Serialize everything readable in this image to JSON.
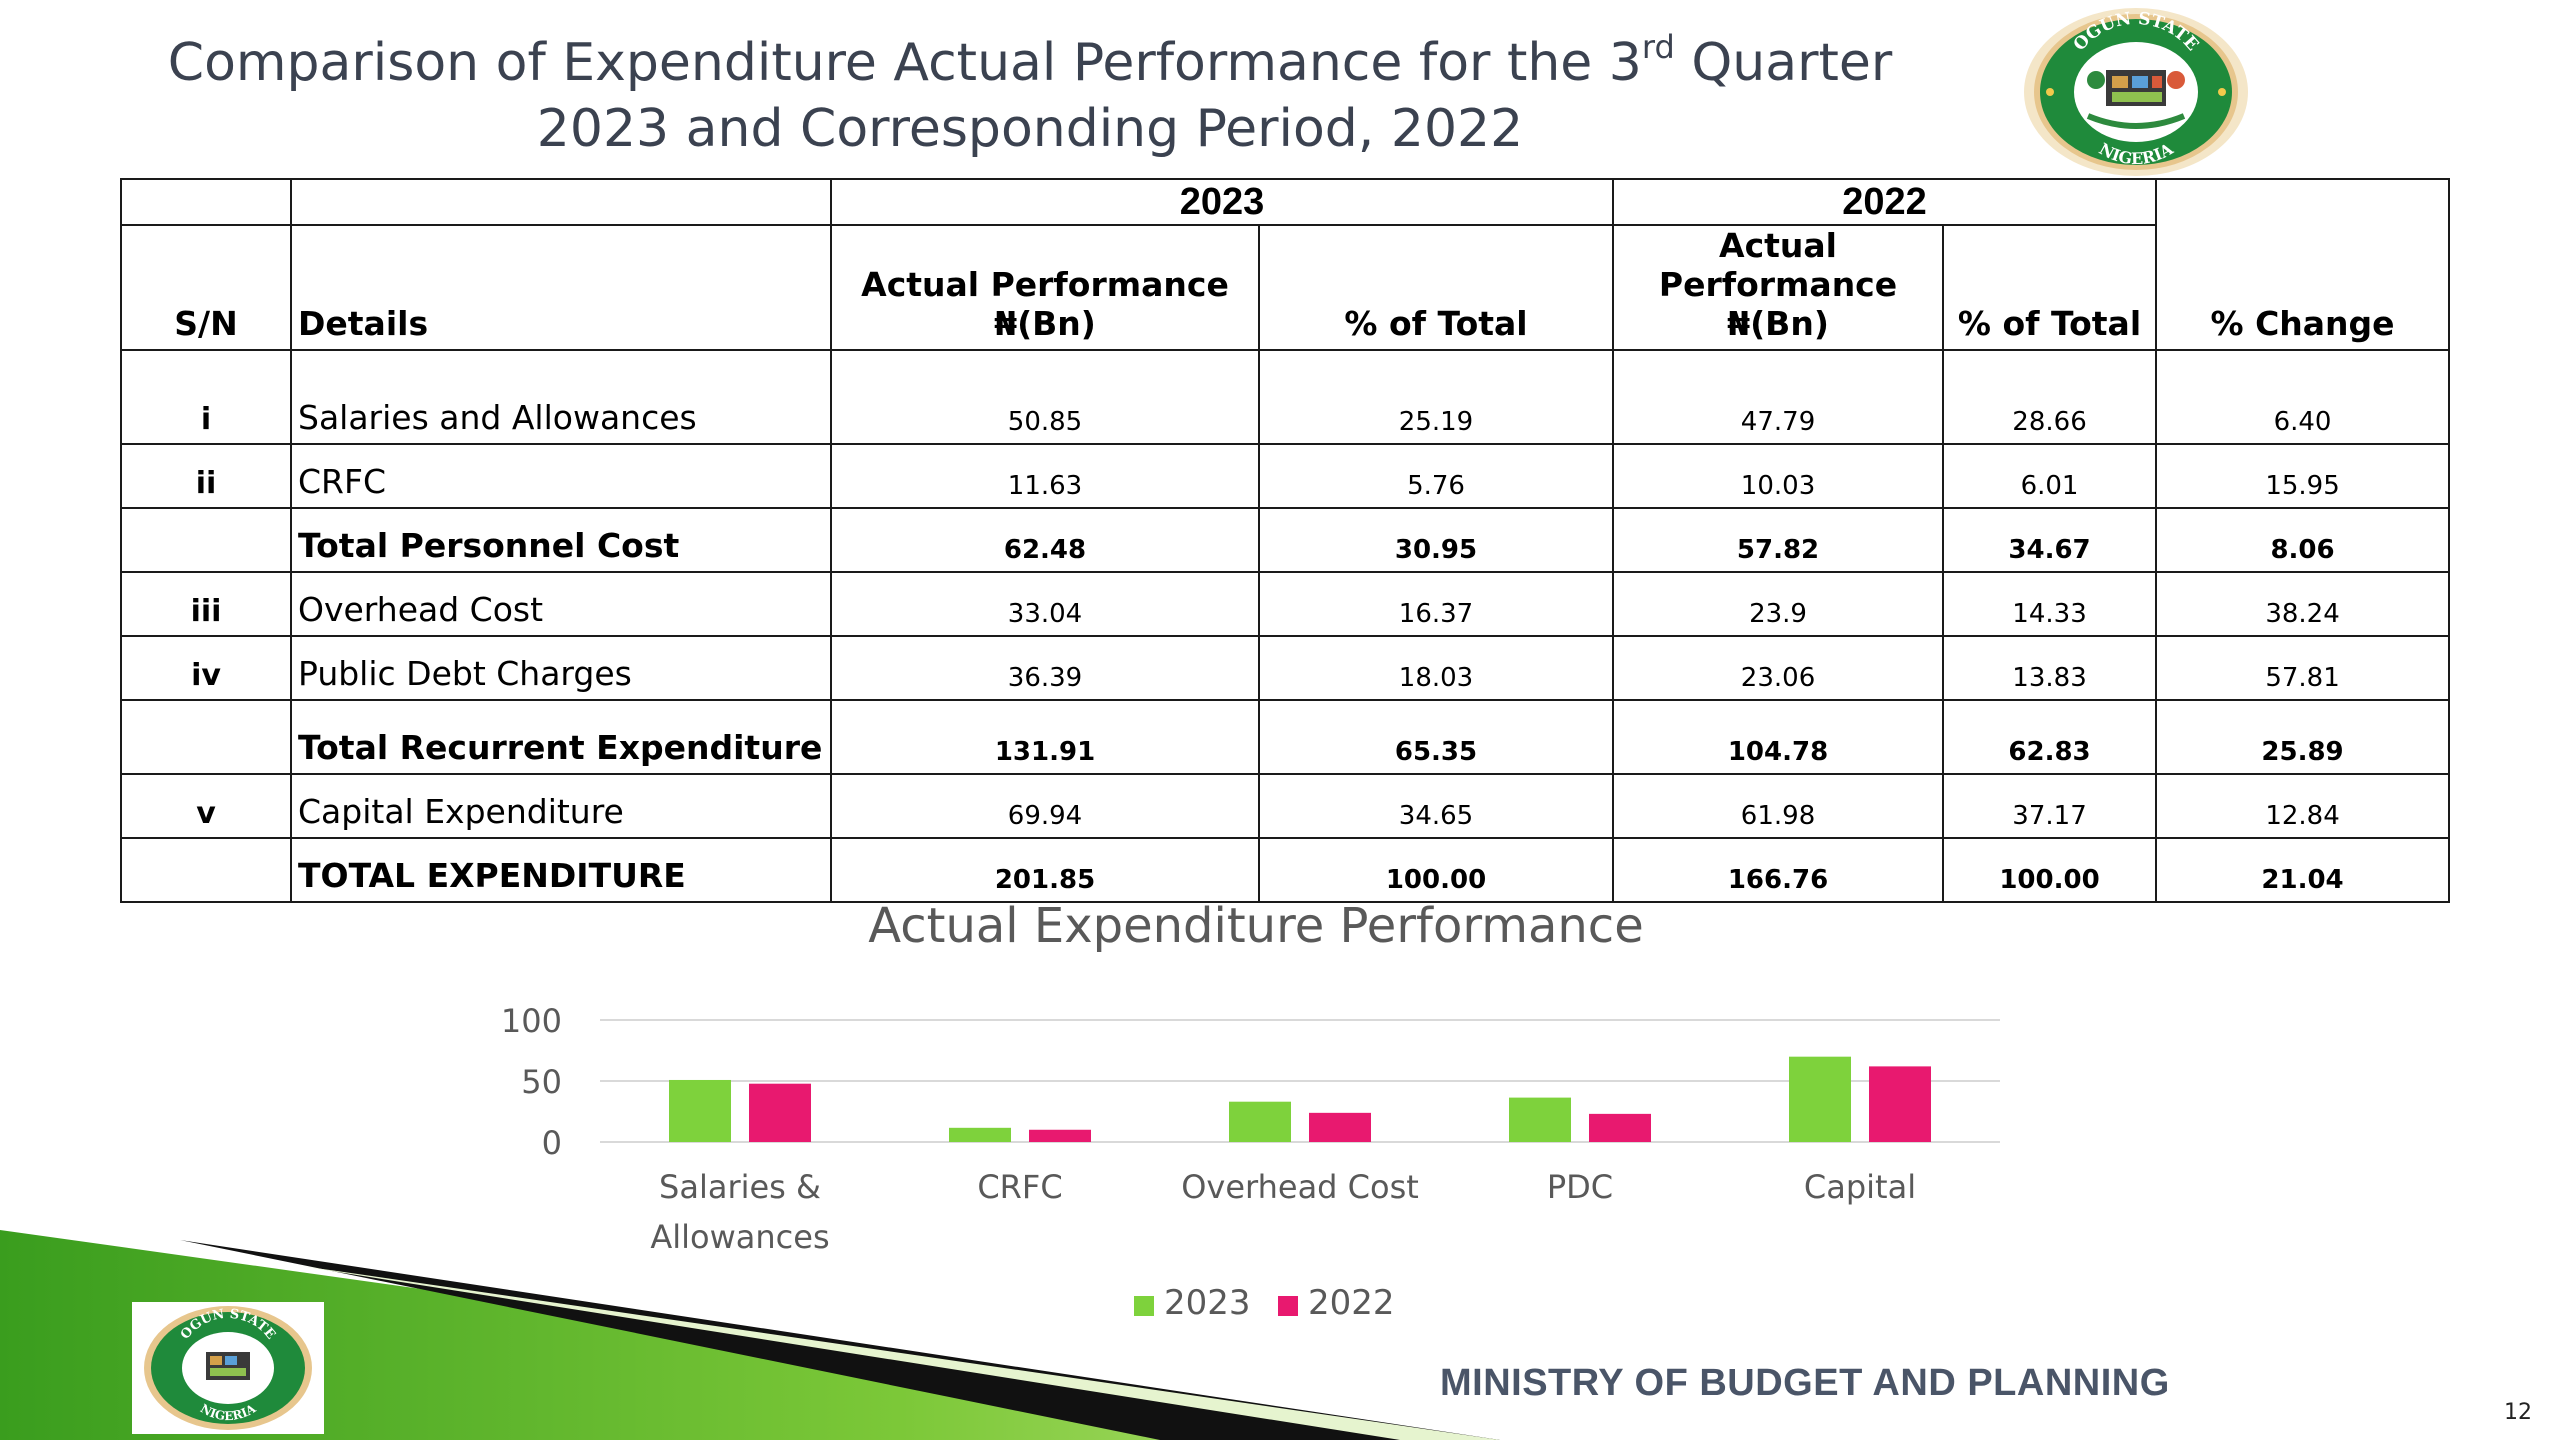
{
  "slide": {
    "title_line1_pre": "Comparison of Expenditure Actual Performance for the 3",
    "title_line1_sup": "rd",
    "title_line1_post": " Quarter",
    "title_line2": "2023 and Corresponding Period, 2022",
    "footer": "MINISTRY OF BUDGET AND PLANNING",
    "page_number": "12"
  },
  "emblem": {
    "top_text": "OGUN STATE",
    "bottom_text": "NIGERIA"
  },
  "table": {
    "year_2023": "2023",
    "year_2022": "2022",
    "headers": {
      "sn": "S/N",
      "details": "Details",
      "actual_line1": "Actual Performance",
      "actual_line2": "₦(Bn)",
      "pct_total": "% of Total",
      "pct_change": "% Change"
    },
    "rows": [
      {
        "sn": "i",
        "details": "Salaries and Allowances",
        "a2023": "50.85",
        "p2023": "25.19",
        "a2022": "47.79",
        "p2022": "28.66",
        "chg": "6.40",
        "bold": false
      },
      {
        "sn": "ii",
        "details": "CRFC",
        "a2023": "11.63",
        "p2023": "5.76",
        "a2022": "10.03",
        "p2022": "6.01",
        "chg": "15.95",
        "bold": false
      },
      {
        "sn": "",
        "details": "Total Personnel Cost",
        "a2023": "62.48",
        "p2023": "30.95",
        "a2022": "57.82",
        "p2022": "34.67",
        "chg": "8.06",
        "bold": true
      },
      {
        "sn": "iii",
        "details": "Overhead Cost",
        "a2023": "33.04",
        "p2023": "16.37",
        "a2022": "23.9",
        "p2022": "14.33",
        "chg": "38.24",
        "bold": false
      },
      {
        "sn": "iv",
        "details": "Public Debt Charges",
        "a2023": "36.39",
        "p2023": "18.03",
        "a2022": "23.06",
        "p2022": "13.83",
        "chg": "57.81",
        "bold": false
      },
      {
        "sn": "",
        "details": "Total Recurrent Expenditure",
        "a2023": "131.91",
        "p2023": "65.35",
        "a2022": "104.78",
        "p2022": "62.83",
        "chg": "25.89",
        "bold": true
      },
      {
        "sn": "v",
        "details": "Capital Expenditure",
        "a2023": "69.94",
        "p2023": "34.65",
        "a2022": "61.98",
        "p2022": "37.17",
        "chg": "12.84",
        "bold": false
      },
      {
        "sn": "",
        "details": "TOTAL EXPENDITURE",
        "a2023": "201.85",
        "p2023": "100.00",
        "a2022": "166.76",
        "p2022": "100.00",
        "chg": "21.04",
        "bold": true
      }
    ]
  },
  "chart_data": {
    "type": "bar",
    "title": "Actual Expenditure Performance",
    "categories": [
      [
        "Salaries &",
        "Allowances"
      ],
      [
        "CRFC"
      ],
      [
        "Overhead Cost"
      ],
      [
        "PDC"
      ],
      [
        "Capital"
      ]
    ],
    "series": [
      {
        "name": "2023",
        "values": [
          50.85,
          11.63,
          33.04,
          36.39,
          69.94
        ],
        "color": "#7ed23c"
      },
      {
        "name": "2022",
        "values": [
          47.79,
          10.03,
          23.9,
          23.06,
          61.98
        ],
        "color": "#e8196f"
      }
    ],
    "yticks": [
      "0",
      "50",
      "100"
    ],
    "ylim": [
      0,
      100
    ],
    "grid": true,
    "legend": "bottom"
  },
  "colors": {
    "title": "#3b4250",
    "green": "#7ed23c",
    "pink": "#e8196f",
    "footer_text": "#4a5568"
  }
}
